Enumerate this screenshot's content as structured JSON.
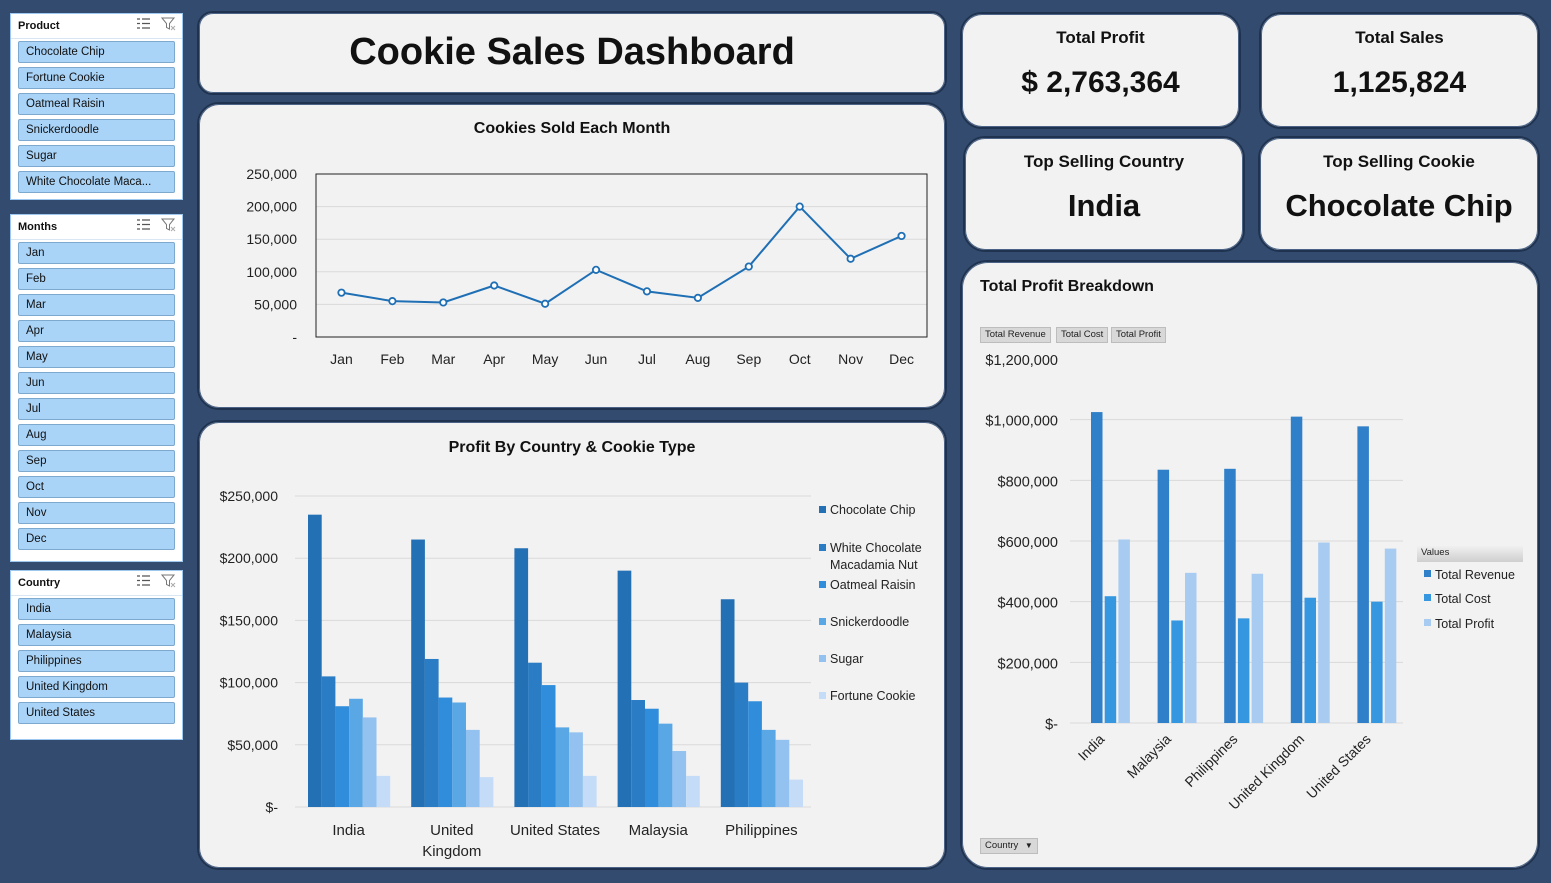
{
  "slicers": {
    "product": {
      "title": "Product",
      "items": [
        "Chocolate Chip",
        "Fortune Cookie",
        "Oatmeal Raisin",
        "Snickerdoodle",
        "Sugar",
        "White Chocolate Maca..."
      ]
    },
    "months": {
      "title": "Months",
      "items": [
        "Jan",
        "Feb",
        "Mar",
        "Apr",
        "May",
        "Jun",
        "Jul",
        "Aug",
        "Sep",
        "Oct",
        "Nov",
        "Dec"
      ]
    },
    "country": {
      "title": "Country",
      "items": [
        "India",
        "Malaysia",
        "Philippines",
        "United Kingdom",
        "United States"
      ]
    }
  },
  "header": {
    "title": "Cookie Sales Dashboard"
  },
  "kpis": {
    "total_profit": {
      "label": "Total Profit",
      "value": "$ 2,763,364"
    },
    "total_sales": {
      "label": "Total Sales",
      "value": "1,125,824"
    },
    "top_country": {
      "label": "Top Selling Country",
      "value": "India"
    },
    "top_cookie": {
      "label": "Top Selling Cookie",
      "value": "Chocolate Chip"
    }
  },
  "pivot": {
    "field_buttons": [
      "Total Revenue",
      "Total Cost",
      "Total Profit"
    ],
    "values_label": "Values",
    "country_button": "Country"
  },
  "colors": {
    "line": "#1f6fb5",
    "cookie_series": [
      "#2370b5",
      "#2a7cc4",
      "#2f8ddb",
      "#5aa7e6",
      "#93c2f0",
      "#c4dcf7"
    ],
    "profit_series": [
      "#2f7fc9",
      "#3597e0",
      "#a8cbf2"
    ]
  },
  "chart_data": [
    {
      "type": "line",
      "title": "Cookies Sold Each Month",
      "categories": [
        "Jan",
        "Feb",
        "Mar",
        "Apr",
        "May",
        "Jun",
        "Jul",
        "Aug",
        "Sep",
        "Oct",
        "Nov",
        "Dec"
      ],
      "values": [
        68000,
        55000,
        53000,
        79000,
        51000,
        103000,
        70000,
        60000,
        108000,
        200000,
        120000,
        155000
      ],
      "ylim": [
        0,
        250000
      ],
      "yticks": [
        "-",
        "50,000",
        "100,000",
        "150,000",
        "200,000",
        "250,000"
      ]
    },
    {
      "type": "bar",
      "title": "Profit By Country & Cookie Type",
      "categories": [
        "India",
        "United Kingdom",
        "United States",
        "Malaysia",
        "Philippines"
      ],
      "category_lines": [
        [
          "India"
        ],
        [
          "United",
          "Kingdom"
        ],
        [
          "United States"
        ],
        [
          "Malaysia"
        ],
        [
          "Philippines"
        ]
      ],
      "series": [
        {
          "name": "Chocolate Chip",
          "values": [
            235000,
            215000,
            208000,
            190000,
            167000
          ]
        },
        {
          "name": "White Chocolate Macadamia Nut",
          "name_lines": [
            "White Chocolate",
            "Macadamia Nut"
          ],
          "values": [
            105000,
            119000,
            116000,
            86000,
            100000
          ]
        },
        {
          "name": "Oatmeal Raisin",
          "values": [
            81000,
            88000,
            98000,
            79000,
            85000
          ]
        },
        {
          "name": "Snickerdoodle",
          "values": [
            87000,
            84000,
            64000,
            67000,
            62000
          ]
        },
        {
          "name": "Sugar",
          "values": [
            72000,
            62000,
            60000,
            45000,
            54000
          ]
        },
        {
          "name": "Fortune Cookie",
          "values": [
            25000,
            24000,
            25000,
            25000,
            22000
          ]
        }
      ],
      "ylim": [
        0,
        250000
      ],
      "yticks": [
        "$-",
        "$50,000",
        "$100,000",
        "$150,000",
        "$200,000",
        "$250,000"
      ],
      "legend": "right"
    },
    {
      "type": "bar",
      "title": "Total Profit Breakdown",
      "categories": [
        "India",
        "Malaysia",
        "Philippines",
        "United Kingdom",
        "United States"
      ],
      "series": [
        {
          "name": "Total Revenue",
          "values": [
            1025000,
            835000,
            838000,
            1010000,
            978000
          ]
        },
        {
          "name": "Total Cost",
          "values": [
            418000,
            338000,
            345000,
            413000,
            400000
          ]
        },
        {
          "name": "Total Profit",
          "values": [
            605000,
            495000,
            492000,
            595000,
            575000
          ]
        }
      ],
      "ylim": [
        0,
        1200000
      ],
      "yticks": [
        "$-",
        "$200,000",
        "$400,000",
        "$600,000",
        "$800,000",
        "$1,000,000",
        "$1,200,000"
      ],
      "legend": "right"
    }
  ]
}
